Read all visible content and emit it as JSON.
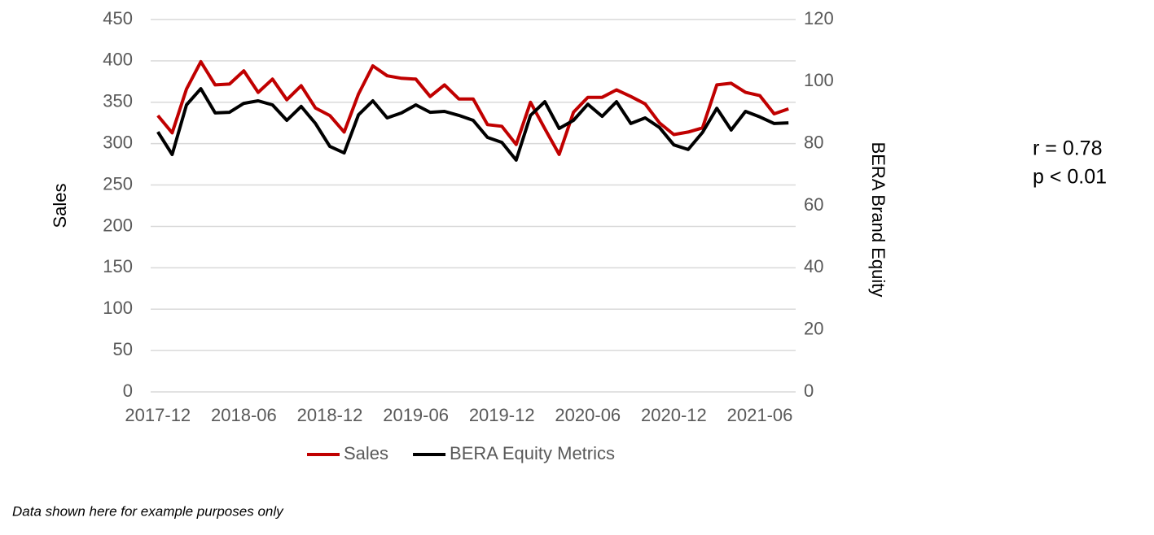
{
  "chart_data": {
    "type": "line",
    "categories": [
      "2017-12",
      null,
      null,
      null,
      null,
      null,
      "2018-06",
      null,
      null,
      null,
      null,
      null,
      "2018-12",
      null,
      null,
      null,
      null,
      null,
      "2019-06",
      null,
      null,
      null,
      null,
      null,
      "2019-12",
      null,
      null,
      null,
      null,
      null,
      "2020-06",
      null,
      null,
      null,
      null,
      null,
      "2020-12",
      null,
      null,
      null,
      null,
      null,
      "2021-06",
      null,
      null
    ],
    "series": [
      {
        "name": "Sales",
        "color": "#c00000",
        "axis": "y",
        "values": [
          334,
          313,
          366,
          399,
          371,
          372,
          388,
          362,
          378,
          353,
          370,
          343,
          334,
          314,
          360,
          394,
          382,
          379,
          378,
          357,
          371,
          354,
          354,
          323,
          321,
          299,
          350,
          318,
          287,
          338,
          356,
          356,
          365,
          357,
          348,
          325,
          311,
          314,
          319,
          371,
          373,
          362,
          358,
          336,
          342
        ]
      },
      {
        "name": "BERA Equity Metrics",
        "color": "#000000",
        "axis": "y2",
        "values": [
          83.8,
          76.5,
          92.5,
          97.7,
          89.9,
          90.1,
          93,
          93.8,
          92.5,
          87.5,
          92,
          86.5,
          79.1,
          77,
          89.3,
          93.8,
          88.3,
          89.9,
          92.5,
          90.1,
          90.4,
          89.1,
          87.5,
          82,
          80.4,
          74.7,
          89.1,
          93.5,
          84.9,
          87.5,
          92.7,
          88.8,
          93.5,
          86.5,
          88.3,
          85.2,
          79.6,
          78.1,
          83.6,
          91.4,
          84.4,
          90.4,
          88.6,
          86.5,
          86.7
        ]
      }
    ],
    "ylabel": "Sales",
    "y2label": "BERA Brand Equity",
    "ylim": [
      0,
      450
    ],
    "yticks": [
      0,
      50,
      100,
      150,
      200,
      250,
      300,
      350,
      400,
      450
    ],
    "y2lim": [
      0,
      120
    ],
    "y2ticks": [
      0,
      20,
      40,
      60,
      80,
      100,
      120
    ],
    "grid": true,
    "legend": "bottom",
    "annotations": [
      "r = 0.78",
      "p < 0.01"
    ],
    "footnote": "Data shown here for example purposes only"
  }
}
